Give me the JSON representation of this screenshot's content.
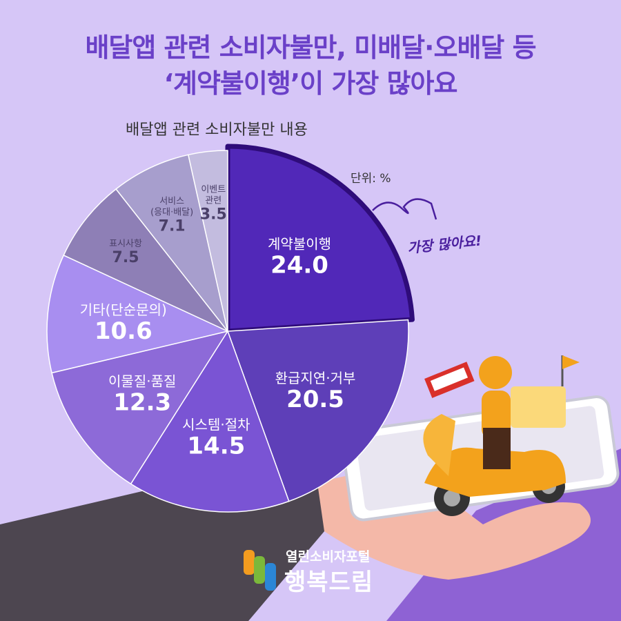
{
  "header": {
    "title_line1": "배달앱 관련 소비자불만, 미배달·오배달 등",
    "title_line2": "‘계약불이행’이 가장 많아요"
  },
  "chart_data": {
    "type": "pie",
    "title": "배달앱 관련 소비자불만 내용",
    "unit": "단위: %",
    "highlight_note": "가장 많아요!",
    "slices": [
      {
        "label": "계약불이행",
        "value": 24.0,
        "color": "#5128b8",
        "highlight": true
      },
      {
        "label": "환급지연·거부",
        "value": 20.5,
        "color": "#5e3fb8"
      },
      {
        "label": "시스템·절차",
        "value": 14.5,
        "color": "#7a54d4"
      },
      {
        "label": "이물질·품질",
        "value": 12.3,
        "color": "#8d6ad8"
      },
      {
        "label": "기타(단순문의)",
        "value": 10.6,
        "color": "#a88ef0"
      },
      {
        "label": "표시사항",
        "value": 7.5,
        "color": "#8e7fb6"
      },
      {
        "label": "서비스\n(응대·배달)",
        "value": 7.1,
        "color": "#a79ecd"
      },
      {
        "label": "이벤트\n관련",
        "value": 3.5,
        "color": "#c3bcdf"
      }
    ]
  },
  "branding": {
    "sub": "열린소비자포털",
    "main": "행복드림"
  }
}
